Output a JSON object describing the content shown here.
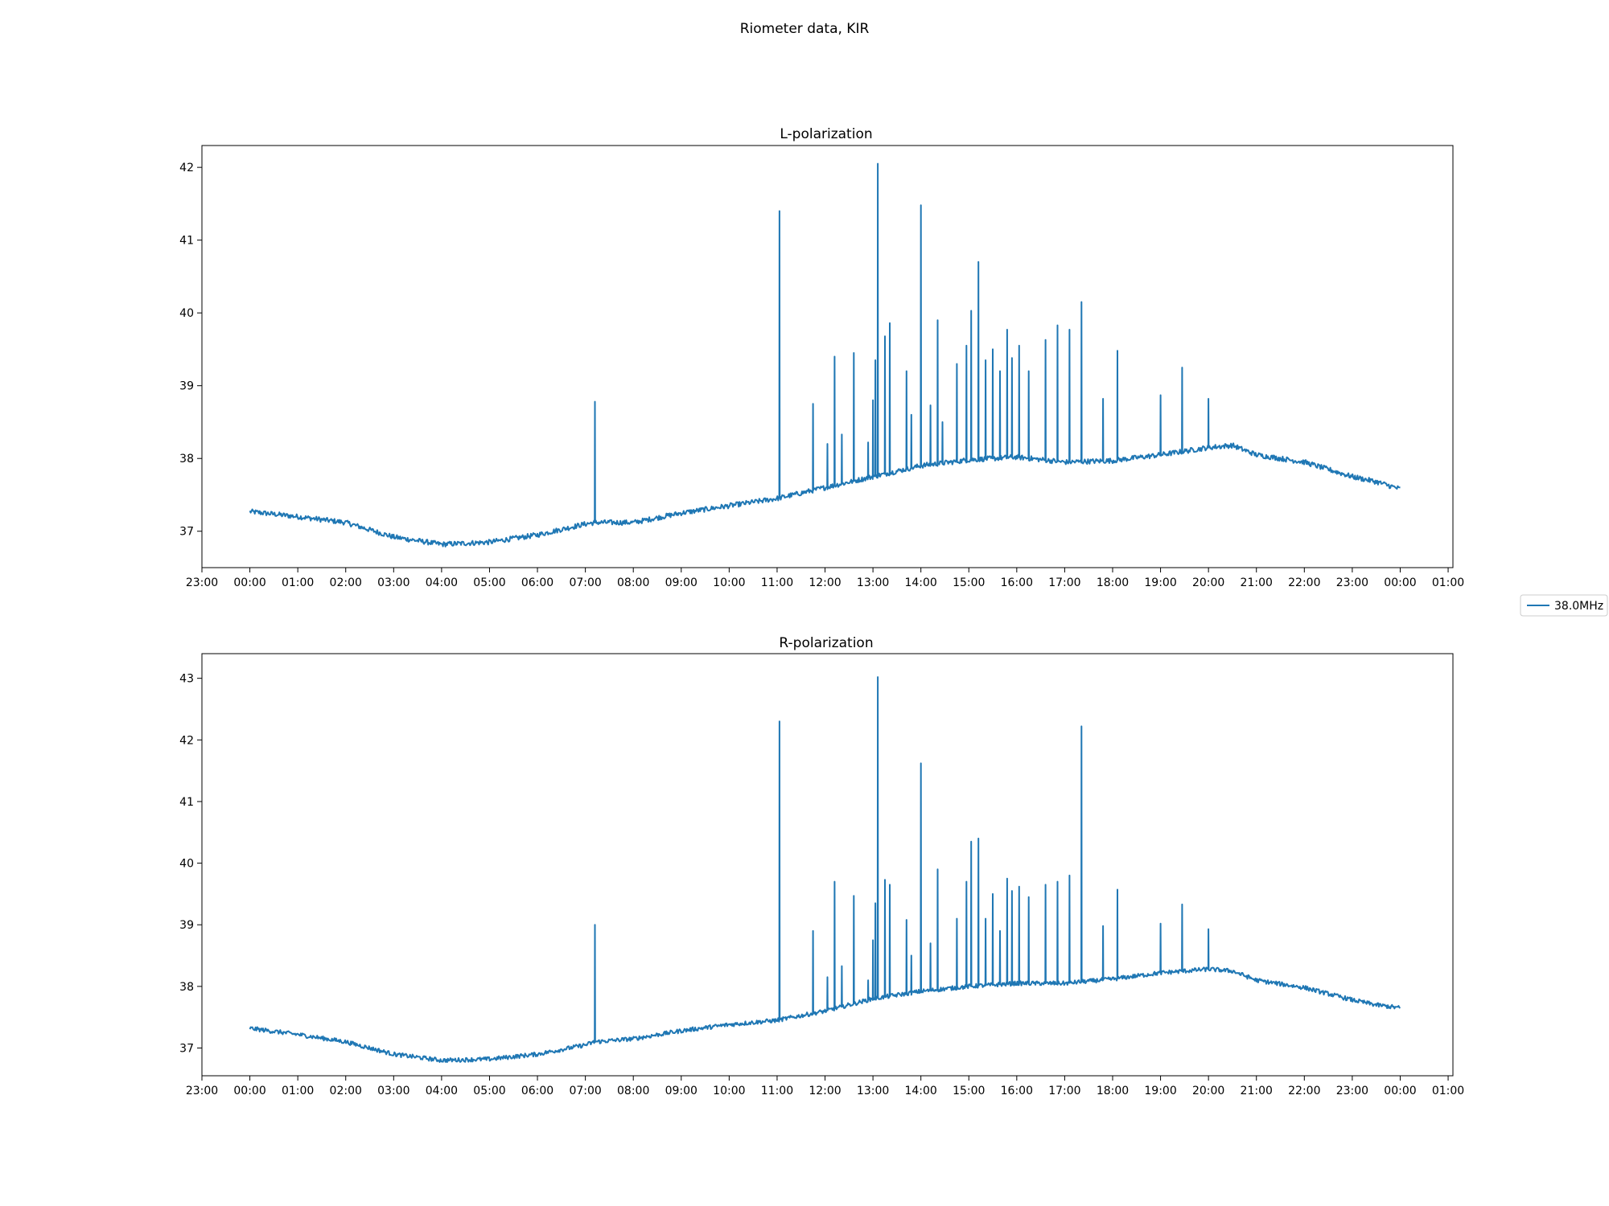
{
  "figure": {
    "suptitle": "Riometer data, KIR"
  },
  "legend": {
    "label": "38.0MHz",
    "color": "#1f77b4"
  },
  "chart_data": [
    {
      "type": "line",
      "title": "L-polarization",
      "xlabel": "",
      "ylabel": "",
      "x_unit": "hours",
      "xlim": [
        -1.0,
        25.1
      ],
      "ylim": [
        36.5,
        42.3
      ],
      "x_ticks": [
        "23:00",
        "00:00",
        "01:00",
        "02:00",
        "03:00",
        "04:00",
        "05:00",
        "06:00",
        "07:00",
        "08:00",
        "09:00",
        "10:00",
        "11:00",
        "12:00",
        "13:00",
        "14:00",
        "15:00",
        "16:00",
        "17:00",
        "18:00",
        "19:00",
        "20:00",
        "21:00",
        "22:00",
        "23:00",
        "00:00",
        "01:00"
      ],
      "y_ticks": [
        "37",
        "38",
        "39",
        "40",
        "41",
        "42"
      ],
      "grid": false,
      "series": [
        {
          "name": "38.0MHz",
          "color": "#1f77b4",
          "x": [
            0,
            1,
            2,
            3,
            4,
            5,
            6,
            7,
            7.2,
            8,
            9,
            10,
            11,
            12,
            13,
            14,
            15,
            16,
            17,
            18,
            19,
            20,
            20.5,
            21,
            22,
            23,
            23.5,
            24
          ],
          "y": [
            37.27,
            37.2,
            37.12,
            36.92,
            36.82,
            36.85,
            36.95,
            37.1,
            37.12,
            37.12,
            37.25,
            37.35,
            37.45,
            37.6,
            37.75,
            37.9,
            37.98,
            38.02,
            37.95,
            37.97,
            38.05,
            38.15,
            38.18,
            38.05,
            37.95,
            37.75,
            37.68,
            37.58
          ],
          "spikes": [
            [
              7.2,
              38.78
            ],
            [
              11.05,
              41.4
            ],
            [
              11.75,
              38.75
            ],
            [
              12.05,
              38.2
            ],
            [
              12.2,
              39.4
            ],
            [
              12.35,
              38.33
            ],
            [
              12.6,
              39.45
            ],
            [
              12.9,
              38.22
            ],
            [
              13.0,
              38.8
            ],
            [
              13.05,
              39.35
            ],
            [
              13.1,
              42.05
            ],
            [
              13.25,
              39.68
            ],
            [
              13.35,
              39.86
            ],
            [
              13.7,
              39.2
            ],
            [
              13.8,
              38.6
            ],
            [
              14.0,
              41.48
            ],
            [
              14.2,
              38.73
            ],
            [
              14.35,
              39.9
            ],
            [
              14.45,
              38.5
            ],
            [
              14.75,
              39.3
            ],
            [
              14.95,
              39.55
            ],
            [
              15.05,
              40.03
            ],
            [
              15.2,
              40.7
            ],
            [
              15.35,
              39.35
            ],
            [
              15.5,
              39.5
            ],
            [
              15.65,
              39.2
            ],
            [
              15.8,
              39.77
            ],
            [
              15.9,
              39.38
            ],
            [
              16.05,
              39.55
            ],
            [
              16.25,
              39.2
            ],
            [
              16.6,
              39.63
            ],
            [
              16.85,
              39.83
            ],
            [
              17.1,
              39.77
            ],
            [
              17.35,
              40.15
            ],
            [
              17.8,
              38.82
            ],
            [
              18.1,
              39.48
            ],
            [
              19.0,
              38.87
            ],
            [
              19.45,
              39.25
            ],
            [
              20.0,
              38.82
            ]
          ]
        }
      ]
    },
    {
      "type": "line",
      "title": "R-polarization",
      "xlabel": "",
      "ylabel": "",
      "x_unit": "hours",
      "xlim": [
        -1.0,
        25.1
      ],
      "ylim": [
        36.55,
        43.4
      ],
      "x_ticks": [
        "23:00",
        "00:00",
        "01:00",
        "02:00",
        "03:00",
        "04:00",
        "05:00",
        "06:00",
        "07:00",
        "08:00",
        "09:00",
        "10:00",
        "11:00",
        "12:00",
        "13:00",
        "14:00",
        "15:00",
        "16:00",
        "17:00",
        "18:00",
        "19:00",
        "20:00",
        "21:00",
        "22:00",
        "23:00",
        "00:00",
        "01:00"
      ],
      "y_ticks": [
        "37",
        "38",
        "39",
        "40",
        "41",
        "42",
        "43"
      ],
      "grid": false,
      "series": [
        {
          "name": "38.0MHz",
          "color": "#1f77b4",
          "x": [
            0,
            1,
            2,
            3,
            4,
            5,
            6,
            7,
            7.2,
            8,
            9,
            10,
            11,
            12,
            13,
            14,
            15,
            16,
            17,
            18,
            19,
            20,
            20.5,
            21,
            22,
            23,
            23.5,
            24
          ],
          "y": [
            37.32,
            37.22,
            37.1,
            36.9,
            36.8,
            36.82,
            36.9,
            37.05,
            37.1,
            37.15,
            37.28,
            37.38,
            37.45,
            37.6,
            37.8,
            37.92,
            38.0,
            38.05,
            38.05,
            38.12,
            38.22,
            38.28,
            38.25,
            38.1,
            37.98,
            37.78,
            37.7,
            37.65
          ],
          "spikes": [
            [
              7.2,
              39.0
            ],
            [
              11.05,
              42.3
            ],
            [
              11.75,
              38.9
            ],
            [
              12.05,
              38.15
            ],
            [
              12.2,
              39.7
            ],
            [
              12.35,
              38.33
            ],
            [
              12.6,
              39.47
            ],
            [
              12.9,
              38.1
            ],
            [
              13.0,
              38.75
            ],
            [
              13.05,
              39.35
            ],
            [
              13.1,
              43.02
            ],
            [
              13.25,
              39.73
            ],
            [
              13.35,
              39.65
            ],
            [
              13.7,
              39.08
            ],
            [
              13.8,
              38.5
            ],
            [
              14.0,
              41.62
            ],
            [
              14.2,
              38.7
            ],
            [
              14.35,
              39.9
            ],
            [
              14.75,
              39.1
            ],
            [
              14.95,
              39.7
            ],
            [
              15.05,
              40.35
            ],
            [
              15.2,
              40.4
            ],
            [
              15.35,
              39.1
            ],
            [
              15.5,
              39.5
            ],
            [
              15.65,
              38.9
            ],
            [
              15.8,
              39.75
            ],
            [
              15.9,
              39.55
            ],
            [
              16.05,
              39.62
            ],
            [
              16.25,
              39.45
            ],
            [
              16.6,
              39.65
            ],
            [
              16.85,
              39.7
            ],
            [
              17.1,
              39.8
            ],
            [
              17.35,
              42.22
            ],
            [
              17.8,
              38.98
            ],
            [
              18.1,
              39.57
            ],
            [
              19.0,
              39.02
            ],
            [
              19.45,
              39.33
            ],
            [
              20.0,
              38.93
            ]
          ]
        }
      ]
    }
  ]
}
